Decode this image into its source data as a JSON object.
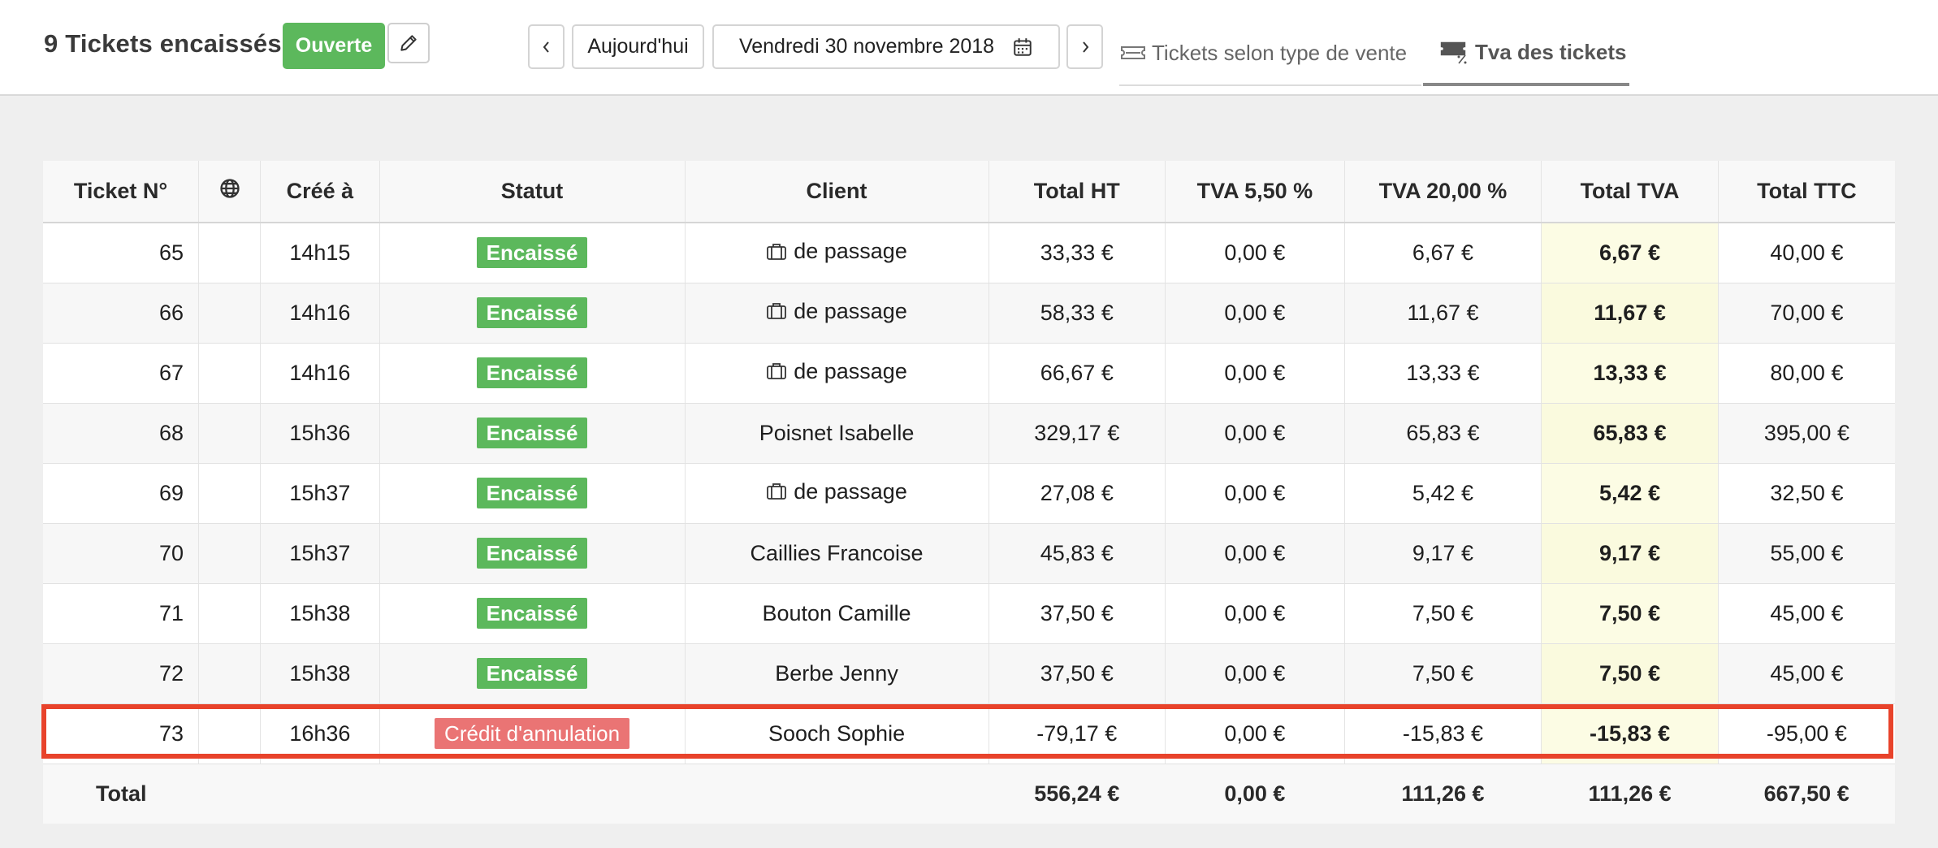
{
  "header": {
    "title": "9 Tickets encaissés",
    "status_button": "Ouverte",
    "edit_icon": "pencil-icon",
    "prev_icon": "chevron-left-icon",
    "today_label": "Aujourd'hui",
    "date_label": "Vendredi 30 novembre 2018",
    "calendar_icon": "calendar-icon",
    "next_icon": "chevron-right-icon",
    "tabs": [
      {
        "label": "Tickets selon type de vente",
        "icon": "ticket-icon",
        "active": false
      },
      {
        "label": "Tva des tickets",
        "icon": "ticket-percent-icon",
        "active": true
      }
    ]
  },
  "colors": {
    "accent_green": "#5cb85c",
    "cancel_red": "#ea7474",
    "highlight_red": "#e8432b",
    "tva_column_bg": "#fcfce4"
  },
  "table": {
    "columns": [
      "Ticket N°",
      "",
      "Créé à",
      "Statut",
      "Client",
      "Total HT",
      "TVA 5,50 %",
      "TVA 20,00 %",
      "Total TVA",
      "Total TTC"
    ],
    "globe_icon": "globe-icon",
    "rows": [
      {
        "ticket": "65",
        "created": "14h15",
        "status": "Encaissé",
        "status_type": "ok",
        "client": "de passage",
        "client_icon": "briefcase-icon",
        "total_ht": "33,33 €",
        "tva_55": "0,00 €",
        "tva_20": "6,67 €",
        "total_tva": "6,67 €",
        "total_ttc": "40,00 €"
      },
      {
        "ticket": "66",
        "created": "14h16",
        "status": "Encaissé",
        "status_type": "ok",
        "client": "de passage",
        "client_icon": "briefcase-icon",
        "total_ht": "58,33 €",
        "tva_55": "0,00 €",
        "tva_20": "11,67 €",
        "total_tva": "11,67 €",
        "total_ttc": "70,00 €"
      },
      {
        "ticket": "67",
        "created": "14h16",
        "status": "Encaissé",
        "status_type": "ok",
        "client": "de passage",
        "client_icon": "briefcase-icon",
        "total_ht": "66,67 €",
        "tva_55": "0,00 €",
        "tva_20": "13,33 €",
        "total_tva": "13,33 €",
        "total_ttc": "80,00 €"
      },
      {
        "ticket": "68",
        "created": "15h36",
        "status": "Encaissé",
        "status_type": "ok",
        "client": "Poisnet Isabelle",
        "client_icon": "",
        "total_ht": "329,17 €",
        "tva_55": "0,00 €",
        "tva_20": "65,83 €",
        "total_tva": "65,83 €",
        "total_ttc": "395,00 €"
      },
      {
        "ticket": "69",
        "created": "15h37",
        "status": "Encaissé",
        "status_type": "ok",
        "client": "de passage",
        "client_icon": "briefcase-icon",
        "total_ht": "27,08 €",
        "tva_55": "0,00 €",
        "tva_20": "5,42 €",
        "total_tva": "5,42 €",
        "total_ttc": "32,50 €"
      },
      {
        "ticket": "70",
        "created": "15h37",
        "status": "Encaissé",
        "status_type": "ok",
        "client": "Caillies Francoise",
        "client_icon": "",
        "total_ht": "45,83 €",
        "tva_55": "0,00 €",
        "tva_20": "9,17 €",
        "total_tva": "9,17 €",
        "total_ttc": "55,00 €"
      },
      {
        "ticket": "71",
        "created": "15h38",
        "status": "Encaissé",
        "status_type": "ok",
        "client": "Bouton Camille",
        "client_icon": "",
        "total_ht": "37,50 €",
        "tva_55": "0,00 €",
        "tva_20": "7,50 €",
        "total_tva": "7,50 €",
        "total_ttc": "45,00 €"
      },
      {
        "ticket": "72",
        "created": "15h38",
        "status": "Encaissé",
        "status_type": "ok",
        "client": "Berbe Jenny",
        "client_icon": "",
        "total_ht": "37,50 €",
        "tva_55": "0,00 €",
        "tva_20": "7,50 €",
        "total_tva": "7,50 €",
        "total_ttc": "45,00 €"
      },
      {
        "ticket": "73",
        "created": "16h36",
        "status": "Crédit d'annulation",
        "status_type": "cancel",
        "client": "Sooch Sophie",
        "client_icon": "",
        "total_ht": "-79,17 €",
        "tva_55": "0,00 €",
        "tva_20": "-15,83 €",
        "total_tva": "-15,83 €",
        "total_ttc": "-95,00 €",
        "highlighted": true
      }
    ],
    "totals": {
      "label": "Total",
      "total_ht": "556,24 €",
      "tva_55": "0,00 €",
      "tva_20": "111,26 €",
      "total_tva": "111,26 €",
      "total_ttc": "667,50 €"
    }
  }
}
